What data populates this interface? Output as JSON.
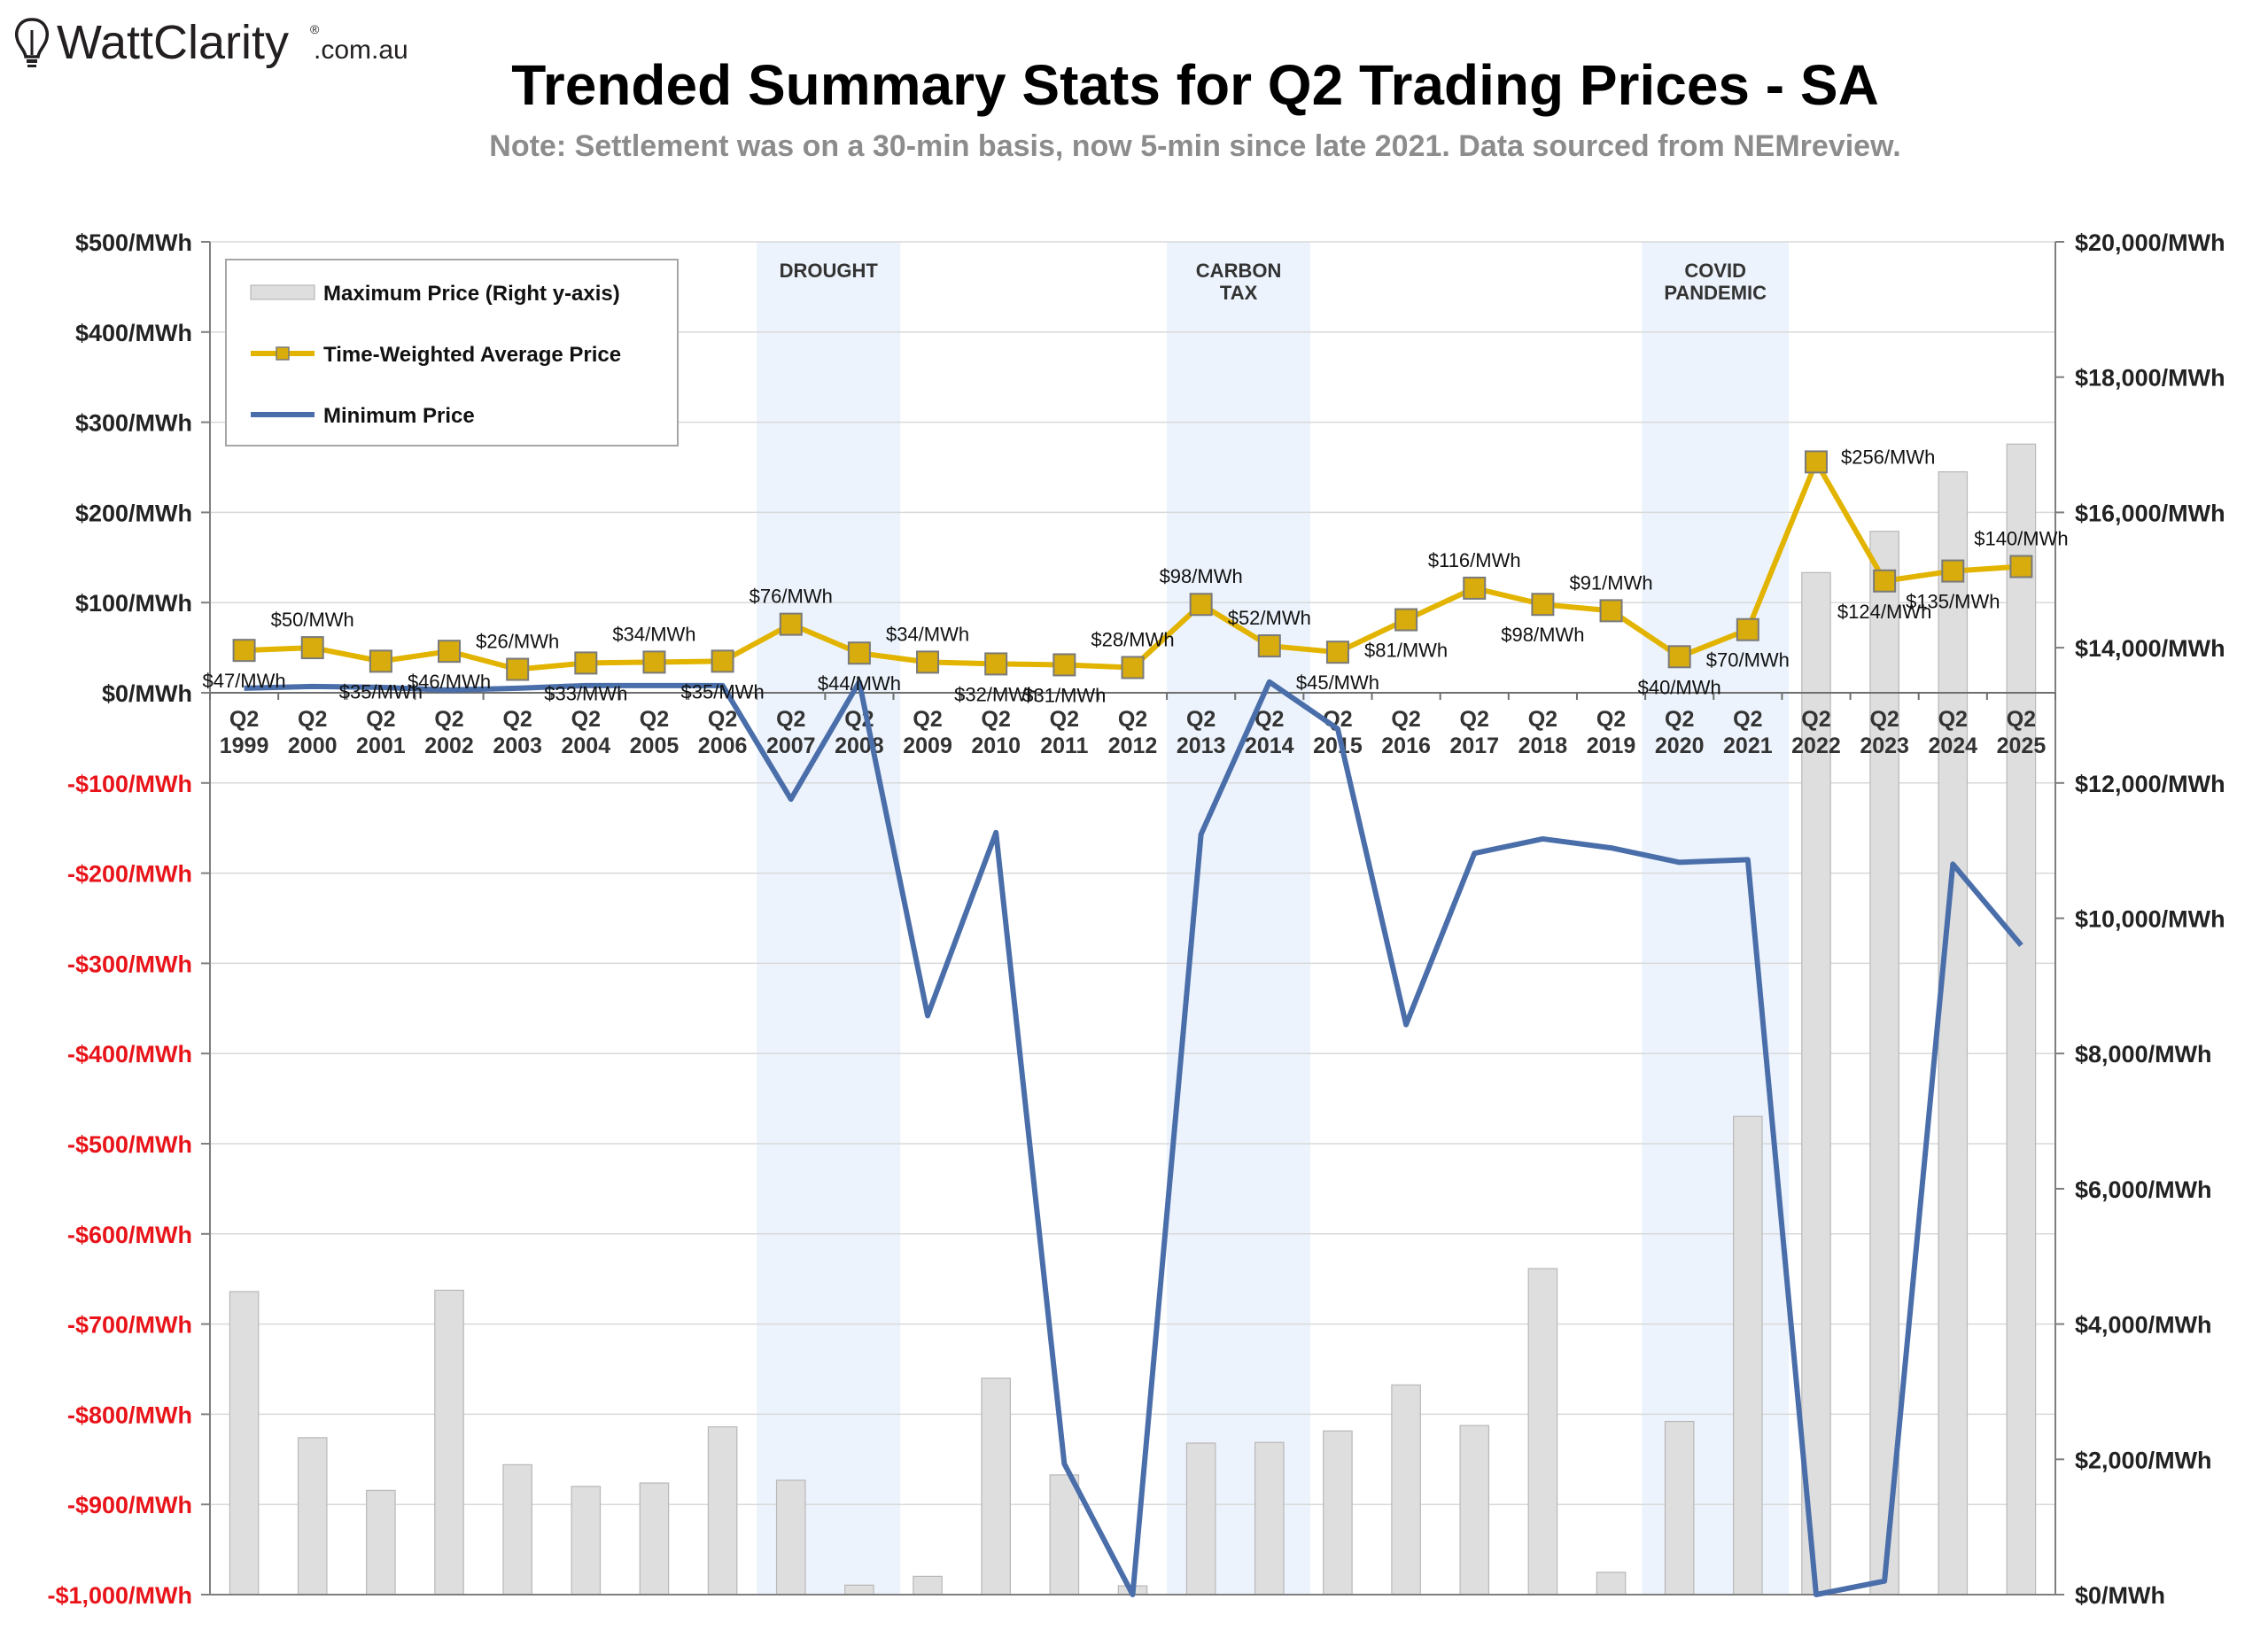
{
  "brand": {
    "name": "WattClarity",
    "mark": "®",
    "suffix": ".com.au",
    "accent": "#231f20"
  },
  "chart_data": {
    "type": "bar+line",
    "title": "Trended Summary Stats for Q2 Trading Prices - SA",
    "subtitle": "Note: Settlement was on a 30-min basis, now 5-min since late 2021. Data sourced from NEMreview.",
    "categories": [
      "Q2 1999",
      "Q2 2000",
      "Q2 2001",
      "Q2 2002",
      "Q2 2003",
      "Q2 2004",
      "Q2 2005",
      "Q2 2006",
      "Q2 2007",
      "Q2 2008",
      "Q2 2009",
      "Q2 2010",
      "Q2 2011",
      "Q2 2012",
      "Q2 2013",
      "Q2 2014",
      "Q2 2015",
      "Q2 2016",
      "Q2 2017",
      "Q2 2018",
      "Q2 2019",
      "Q2 2020",
      "Q2 2021",
      "Q2 2022",
      "Q2 2023",
      "Q2 2024",
      "Q2 2025"
    ],
    "category_lines": [
      [
        "Q2",
        "1999"
      ],
      [
        "Q2",
        "2000"
      ],
      [
        "Q2",
        "2001"
      ],
      [
        "Q2",
        "2002"
      ],
      [
        "Q2",
        "2003"
      ],
      [
        "Q2",
        "2004"
      ],
      [
        "Q2",
        "2005"
      ],
      [
        "Q2",
        "2006"
      ],
      [
        "Q2",
        "2007"
      ],
      [
        "Q2",
        "2008"
      ],
      [
        "Q2",
        "2009"
      ],
      [
        "Q2",
        "2010"
      ],
      [
        "Q2",
        "2011"
      ],
      [
        "Q2",
        "2012"
      ],
      [
        "Q2",
        "2013"
      ],
      [
        "Q2",
        "2014"
      ],
      [
        "Q2",
        "2015"
      ],
      [
        "Q2",
        "2016"
      ],
      [
        "Q2",
        "2017"
      ],
      [
        "Q2",
        "2018"
      ],
      [
        "Q2",
        "2019"
      ],
      [
        "Q2",
        "2020"
      ],
      [
        "Q2",
        "2021"
      ],
      [
        "Q2",
        "2022"
      ],
      [
        "Q2",
        "2023"
      ],
      [
        "Q2",
        "2024"
      ],
      [
        "Q2",
        "2025"
      ]
    ],
    "left_axis": {
      "ylim": [
        -1000,
        500
      ],
      "ticks": [
        500,
        400,
        300,
        200,
        100,
        0,
        -100,
        -200,
        -300,
        -400,
        -500,
        -600,
        -700,
        -800,
        -900,
        -1000
      ],
      "tick_labels": [
        "$500/MWh",
        "$400/MWh",
        "$300/MWh",
        "$200/MWh",
        "$100/MWh",
        "$0/MWh",
        "-$100/MWh",
        "-$200/MWh",
        "-$300/MWh",
        "-$400/MWh",
        "-$500/MWh",
        "-$600/MWh",
        "-$700/MWh",
        "-$800/MWh",
        "-$900/MWh",
        "-$1,000/MWh"
      ],
      "positive_color": "#222222",
      "negative_color": "#e8141a"
    },
    "right_axis": {
      "ylim": [
        0,
        20000
      ],
      "ticks": [
        20000,
        18000,
        16000,
        14000,
        12000,
        10000,
        8000,
        6000,
        4000,
        2000,
        0
      ],
      "tick_labels": [
        "$20,000/MWh",
        "$18,000/MWh",
        "$16,000/MWh",
        "$14,000/MWh",
        "$12,000/MWh",
        "$10,000/MWh",
        "$8,000/MWh",
        "$6,000/MWh",
        "$4,000/MWh",
        "$2,000/MWh",
        "$0/MWh"
      ]
    },
    "grid": true,
    "shaded_periods": [
      {
        "label_lines": [
          "DROUGHT"
        ],
        "from_index": 7.5,
        "to_index": 9.6
      },
      {
        "label_lines": [
          "CARBON",
          "TAX"
        ],
        "from_index": 13.5,
        "to_index": 15.6
      },
      {
        "label_lines": [
          "COVID",
          "PANDEMIC"
        ],
        "from_index": 20.45,
        "to_index": 22.6
      }
    ],
    "series": [
      {
        "name": "Maximum Price (Right y-axis)",
        "kind": "bar",
        "axis": "right",
        "color": "#dedede",
        "stroke": "#b8b8b8",
        "values": [
          4480,
          2320,
          1540,
          4500,
          1920,
          1600,
          1650,
          2480,
          1690,
          140,
          270,
          3200,
          1770,
          130,
          2240,
          2250,
          2420,
          3100,
          2500,
          4820,
          330,
          2560,
          7070,
          15110,
          15720,
          16600,
          17010
        ]
      },
      {
        "name": "Time-Weighted Average Price",
        "kind": "line",
        "axis": "left",
        "color": "#e2b400",
        "marker_fill": "#d8ac0c",
        "marker_stroke": "#7a7a7a",
        "values": [
          47,
          50,
          35,
          46,
          26,
          33,
          34,
          35,
          76,
          44,
          34,
          32,
          31,
          28,
          98,
          52,
          45,
          81,
          116,
          98,
          91,
          40,
          70,
          256,
          124,
          135,
          140
        ],
        "labels": [
          "$47/MWh",
          "$50/MWh",
          "$35/MWh",
          "$46/MWh",
          "$26/MWh",
          "$33/MWh",
          "$34/MWh",
          "$35/MWh",
          "$76/MWh",
          "$44/MWh",
          "$34/MWh",
          "$32/MWh",
          "$31/MWh",
          "$28/MWh",
          "$98/MWh",
          "$52/MWh",
          "$45/MWh",
          "$81/MWh",
          "$116/MWh",
          "$98/MWh",
          "$91/MWh",
          "$40/MWh",
          "$70/MWh",
          "$256/MWh",
          "$124/MWh",
          "$135/MWh",
          "$140/MWh"
        ],
        "label_positions": [
          "below",
          "above",
          "below",
          "below",
          "above",
          "below",
          "above",
          "below",
          "above",
          "below",
          "above",
          "below",
          "below",
          "above",
          "above",
          "above",
          "below",
          "below",
          "above",
          "below",
          "above",
          "below",
          "below",
          "right",
          "below",
          "below",
          "above"
        ]
      },
      {
        "name": "Minimum Price",
        "kind": "line",
        "axis": "left",
        "color": "#4a6ea9",
        "values": [
          5,
          7,
          6,
          3,
          5,
          8,
          8,
          8,
          -118,
          12,
          -358,
          -155,
          -855,
          -1000,
          -157,
          12,
          -40,
          -368,
          -178,
          -162,
          -172,
          -188,
          -185,
          -1000,
          -985,
          -190,
          -280
        ]
      }
    ],
    "legend": {
      "placement": "top-left"
    }
  }
}
